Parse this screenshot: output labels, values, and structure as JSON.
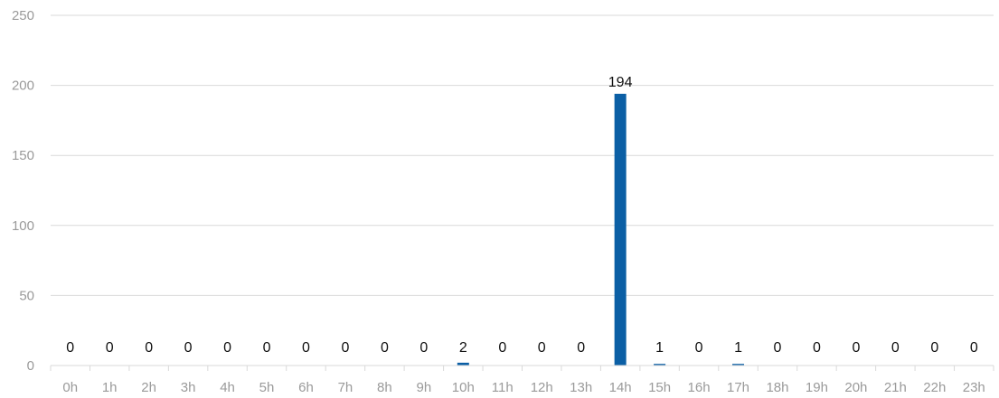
{
  "chart_data": {
    "type": "bar",
    "categories": [
      "0h",
      "1h",
      "2h",
      "3h",
      "4h",
      "5h",
      "6h",
      "7h",
      "8h",
      "9h",
      "10h",
      "11h",
      "12h",
      "13h",
      "14h",
      "15h",
      "16h",
      "17h",
      "18h",
      "19h",
      "20h",
      "21h",
      "22h",
      "23h"
    ],
    "values": [
      0,
      0,
      0,
      0,
      0,
      0,
      0,
      0,
      0,
      0,
      2,
      0,
      0,
      0,
      194,
      1,
      0,
      1,
      0,
      0,
      0,
      0,
      0,
      0
    ],
    "ylim": [
      0,
      250
    ],
    "yticks": [
      "0",
      "50",
      "100",
      "150",
      "200",
      "250"
    ],
    "grid": true,
    "legend": "none",
    "data_labels": true,
    "colors": {
      "bar": "#0b5fa5",
      "grid": "#d9d9d9",
      "tick_text": "#9a9a9a",
      "label_text": "#111111"
    }
  }
}
